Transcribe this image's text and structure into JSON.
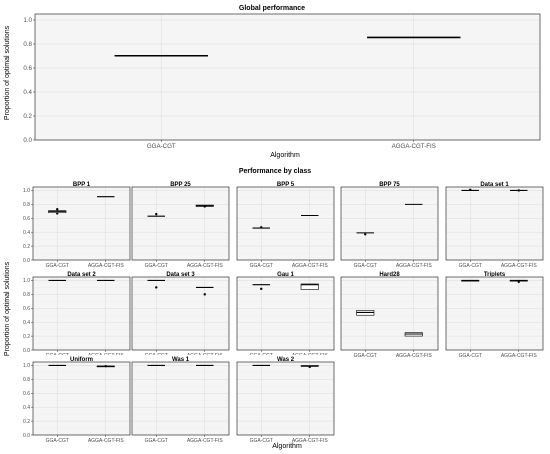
{
  "figure": {
    "ylabel": "Proportion of optimal solutions",
    "xlabel": "Algorithm"
  },
  "chart_data": [
    {
      "type": "box",
      "title": "Global performance",
      "xlabel": "Algorithm",
      "ylabel": "Proportion of optimal solutions",
      "categories": [
        "GGA-CGT",
        "AGGA-CGT-FIS"
      ],
      "ylim": [
        0,
        1.05
      ],
      "yticks": [
        0.0,
        0.2,
        0.4,
        0.6,
        0.8,
        1.0
      ],
      "ytick_labels": [
        "0.0",
        "0.2",
        "0.4",
        "0.6",
        "0.8",
        "1.0"
      ],
      "grid": true,
      "boxes": [
        {
          "q1": 0.702,
          "median": 0.702,
          "q3": 0.702,
          "outliers": []
        },
        {
          "q1": 0.855,
          "median": 0.855,
          "q3": 0.855,
          "outliers": []
        }
      ]
    },
    {
      "type": "box",
      "title": "Performance by class",
      "xlabel": "Algorithm",
      "ylabel": "Proportion of optimal solutions",
      "categories": [
        "GGA-CGT",
        "AGGA-CGT-FIS"
      ],
      "ylim": [
        0,
        1.05
      ],
      "yticks": [
        0.0,
        0.2,
        0.4,
        0.6,
        0.8,
        1.0
      ],
      "ytick_labels": [
        "0.0",
        "0.2",
        "0.4",
        "0.6",
        "0.8",
        "1.0"
      ],
      "grid": true,
      "facets": [
        {
          "title": "BPP 1",
          "boxes": [
            {
              "q1": 0.68,
              "median": 0.7,
              "q3": 0.71,
              "outliers": [
                0.73,
                0.67
              ]
            },
            {
              "q1": 0.91,
              "median": 0.91,
              "q3": 0.91,
              "outliers": []
            }
          ]
        },
        {
          "title": "BPP 25",
          "boxes": [
            {
              "q1": 0.63,
              "median": 0.63,
              "q3": 0.63,
              "outliers": [
                0.66
              ]
            },
            {
              "q1": 0.77,
              "median": 0.78,
              "q3": 0.79,
              "outliers": [
                0.77
              ]
            }
          ]
        },
        {
          "title": "BPP 5",
          "boxes": [
            {
              "q1": 0.46,
              "median": 0.46,
              "q3": 0.46,
              "outliers": [
                0.47
              ]
            },
            {
              "q1": 0.64,
              "median": 0.64,
              "q3": 0.64,
              "outliers": []
            }
          ]
        },
        {
          "title": "BPP 75",
          "boxes": [
            {
              "q1": 0.39,
              "median": 0.39,
              "q3": 0.39,
              "outliers": [
                0.37
              ]
            },
            {
              "q1": 0.8,
              "median": 0.8,
              "q3": 0.8,
              "outliers": []
            }
          ]
        },
        {
          "title": "Data set 1",
          "boxes": [
            {
              "q1": 1.0,
              "median": 1.0,
              "q3": 1.0,
              "outliers": [
                1.01
              ]
            },
            {
              "q1": 1.0,
              "median": 1.0,
              "q3": 1.0,
              "outliers": [
                1.0
              ]
            }
          ]
        },
        {
          "title": "Data set 2",
          "boxes": [
            {
              "q1": 1.0,
              "median": 1.0,
              "q3": 1.0,
              "outliers": []
            },
            {
              "q1": 1.0,
              "median": 1.0,
              "q3": 1.0,
              "outliers": []
            }
          ]
        },
        {
          "title": "Data set 3",
          "boxes": [
            {
              "q1": 1.0,
              "median": 1.0,
              "q3": 1.0,
              "outliers": [
                0.9
              ]
            },
            {
              "q1": 0.9,
              "median": 0.9,
              "q3": 0.9,
              "outliers": [
                0.8
              ]
            }
          ]
        },
        {
          "title": "Gau 1",
          "boxes": [
            {
              "q1": 0.94,
              "median": 0.94,
              "q3": 0.94,
              "outliers": [
                0.88
              ]
            },
            {
              "q1": 0.87,
              "median": 0.94,
              "q3": 0.95,
              "outliers": []
            }
          ]
        },
        {
          "title": "Hard28",
          "boxes": [
            {
              "q1": 0.5,
              "median": 0.54,
              "q3": 0.57,
              "outliers": []
            },
            {
              "q1": 0.2,
              "median": 0.23,
              "q3": 0.25,
              "outliers": []
            }
          ]
        },
        {
          "title": "Triplets",
          "boxes": [
            {
              "q1": 0.99,
              "median": 1.0,
              "q3": 1.0,
              "outliers": []
            },
            {
              "q1": 0.99,
              "median": 1.0,
              "q3": 1.0,
              "outliers": [
                0.98
              ]
            }
          ]
        },
        {
          "title": "Uniform",
          "boxes": [
            {
              "q1": 1.0,
              "median": 1.0,
              "q3": 1.0,
              "outliers": []
            },
            {
              "q1": 0.98,
              "median": 0.99,
              "q3": 0.99,
              "outliers": [
                0.99
              ]
            }
          ]
        },
        {
          "title": "Was 1",
          "boxes": [
            {
              "q1": 1.0,
              "median": 1.0,
              "q3": 1.0,
              "outliers": []
            },
            {
              "q1": 1.0,
              "median": 1.0,
              "q3": 1.0,
              "outliers": []
            }
          ]
        },
        {
          "title": "Was 2",
          "boxes": [
            {
              "q1": 1.0,
              "median": 1.0,
              "q3": 1.0,
              "outliers": []
            },
            {
              "q1": 0.99,
              "median": 0.99,
              "q3": 1.0,
              "outliers": [
                0.98
              ]
            }
          ]
        }
      ]
    }
  ]
}
